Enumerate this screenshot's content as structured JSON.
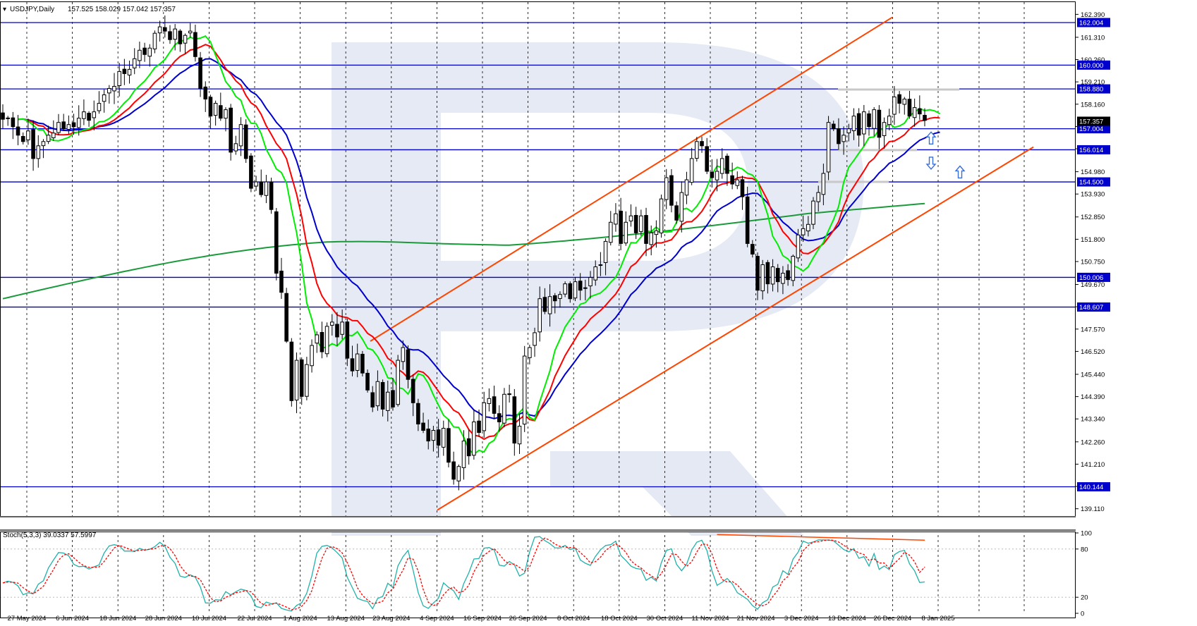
{
  "chart_data": [
    {
      "type": "candlestick",
      "header": {
        "symbol": "USDJPY,Daily",
        "ohlc": "157.525 158.029 157.042 157.357"
      },
      "y_ticks": [
        "162.390",
        "161.310",
        "160.260",
        "159.210",
        "158.160",
        "157.110",
        "156.060",
        "154.980",
        "153.930",
        "152.850",
        "151.800",
        "150.750",
        "149.670",
        "148.620",
        "147.570",
        "146.520",
        "145.440",
        "144.390",
        "143.340",
        "142.260",
        "141.210",
        "140.160",
        "139.110"
      ],
      "x_ticks": [
        "27 May 2024",
        "6 Jun 2024",
        "18 Jun 2024",
        "28 Jun 2024",
        "10 Jul 2024",
        "22 Jul 2024",
        "1 Aug 2024",
        "13 Aug 2024",
        "23 Aug 2024",
        "4 Sep 2024",
        "16 Sep 2024",
        "26 Sep 2024",
        "8 Oct 2024",
        "18 Oct 2024",
        "30 Oct 2024",
        "11 Nov 2024",
        "21 Nov 2024",
        "3 Dec 2024",
        "13 Dec 2024",
        "26 Dec 2024",
        "8 Jan 2025"
      ],
      "ylim": [
        138.9,
        162.8
      ],
      "levels": [
        {
          "value": 162.004,
          "label": "162.004"
        },
        {
          "value": 160.0,
          "label": "160.000"
        },
        {
          "value": 158.88,
          "label": "158.880"
        },
        {
          "value": 157.004,
          "label": "157.004"
        },
        {
          "value": 156.014,
          "label": "156.014"
        },
        {
          "value": 154.5,
          "label": "154.500"
        },
        {
          "value": 150.006,
          "label": "150.006"
        },
        {
          "value": 148.607,
          "label": "148.607"
        },
        {
          "value": 140.144,
          "label": "140.144"
        }
      ],
      "current_price": {
        "value": 157.357,
        "label": "157.357"
      },
      "closes": [
        157.45,
        157.5,
        157.1,
        156.7,
        156.4,
        156.9,
        155.6,
        156.2,
        156.4,
        156.7,
        156.8,
        157.3,
        157.0,
        157.2,
        157.1,
        157.5,
        157.8,
        157.4,
        157.8,
        158.2,
        158.6,
        158.9,
        159.0,
        159.7,
        159.6,
        159.8,
        160.3,
        160.7,
        160.5,
        160.8,
        161.5,
        161.8,
        161.6,
        161.2,
        161.7,
        161.0,
        161.4,
        161.6,
        160.4,
        158.9,
        158.4,
        157.6,
        158.2,
        157.5,
        157.9,
        155.9,
        156.3,
        157.2,
        155.6,
        154.2,
        154.5,
        153.9,
        154.5,
        153.2,
        150.2,
        149.3,
        147.0,
        144.2,
        146.1,
        144.4,
        145.9,
        146.8,
        147.3,
        146.5,
        147.7,
        147.9,
        147.2,
        147.9,
        146.2,
        145.6,
        146.4,
        145.5,
        144.7,
        143.9,
        145.1,
        143.8,
        144.6,
        143.9,
        146.1,
        146.7,
        145.2,
        144.1,
        143.1,
        142.8,
        142.3,
        142.8,
        142.1,
        142.9,
        141.3,
        140.5,
        141.1,
        142.3,
        141.6,
        143.2,
        142.7,
        144.1,
        144.3,
        143.6,
        143.2,
        144.5,
        144.5,
        142.2,
        143.0,
        146.3,
        146.7,
        147.4,
        149.0,
        148.4,
        149.1,
        148.9,
        149.2,
        149.7,
        149.0,
        149.8,
        149.4,
        149.5,
        150.0,
        150.5,
        150.6,
        151.7,
        152.6,
        153.0,
        151.6,
        152.6,
        152.9,
        152.1,
        152.9,
        151.6,
        152.1,
        152.2,
        153.7,
        154.7,
        153.4,
        152.7,
        154.0,
        154.6,
        155.6,
        156.4,
        156.2,
        155.0,
        154.7,
        155.0,
        155.6,
        154.9,
        154.4,
        154.6,
        153.8,
        151.6,
        151.1,
        149.4,
        150.6,
        149.7,
        150.5,
        149.8,
        150.2,
        149.9,
        151.0,
        152.0,
        152.3,
        152.5,
        153.6,
        154.0,
        154.9,
        157.3,
        157.0,
        156.3,
        156.7,
        157.0,
        157.6,
        156.7,
        157.8,
        157.1,
        157.9,
        156.6,
        157.3,
        157.6,
        158.5,
        158.2,
        158.4,
        157.6,
        158.0,
        157.7,
        157.4
      ],
      "indicators": [
        {
          "name": "ma-fast",
          "color": "#00ee00"
        },
        {
          "name": "ma-mid",
          "color": "#ff0000"
        },
        {
          "name": "ma-slow",
          "color": "#0000cc"
        },
        {
          "name": "ma-long",
          "color": "#1a9a3a"
        }
      ],
      "stochastic": {
        "header": "Stoch(5,3,3) 39.0337 57.5997",
        "k_last": 39.0337,
        "d_last": 57.5997,
        "y_ticks": [
          "100",
          "80",
          "20",
          "0"
        ],
        "k_color": "#20b2aa",
        "d_color": "#ff0000"
      },
      "colors": {
        "level_line": "#0000cc",
        "channel": "#ff4500",
        "badge_bg": "#0000cc",
        "grid": "#000000",
        "candle": "#000000",
        "arrow_up": "#3a6fd8",
        "arrow_down": "#3a6fd8"
      }
    }
  ]
}
